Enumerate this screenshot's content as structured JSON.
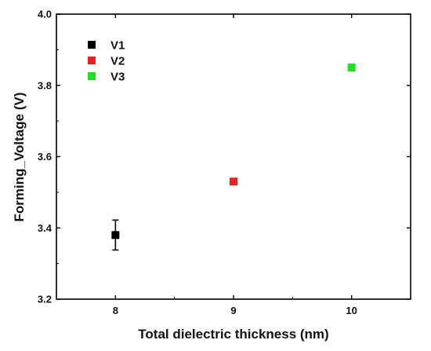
{
  "chart_data": {
    "type": "scatter",
    "title": "",
    "xlabel": "Total dielectric thickness (nm)",
    "ylabel": "Forming_Voltage (V)",
    "xlim": [
      7.5,
      10.5
    ],
    "ylim": [
      3.2,
      4.0
    ],
    "x_ticks": [
      8,
      9,
      10
    ],
    "x_tick_labels": [
      "8",
      "9",
      "10"
    ],
    "y_ticks": [
      3.2,
      3.4,
      3.6,
      3.8,
      4.0
    ],
    "y_tick_labels": [
      "3.2",
      "3.4",
      "3.6",
      "3.8",
      "4.0"
    ],
    "grid": false,
    "legend_position": "top-left",
    "series": [
      {
        "name": "V1",
        "color": "#000000",
        "x": [
          8
        ],
        "y": [
          3.38
        ],
        "error": [
          0.042
        ]
      },
      {
        "name": "V2",
        "color": "#e8231f",
        "x": [
          9
        ],
        "y": [
          3.53
        ],
        "error": [
          0.008
        ]
      },
      {
        "name": "V3",
        "color": "#1fe21f",
        "x": [
          10
        ],
        "y": [
          3.85
        ],
        "error": [
          0.005
        ]
      }
    ]
  }
}
